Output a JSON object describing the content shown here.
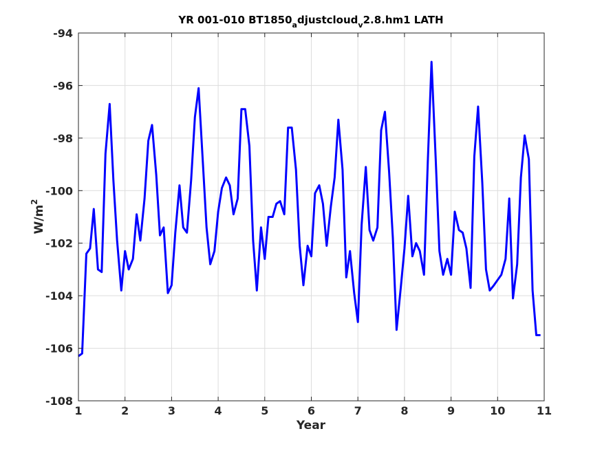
{
  "chart_data": {
    "type": "line",
    "title": {
      "base": "YR 001-010 BT1850",
      "sub1": "a",
      "mid": "djustcloud",
      "sub2": "v",
      "tail": "2.8.hm1 LATH"
    },
    "xlabel": "Year",
    "ylabel": {
      "base": "W/m",
      "sup": "2"
    },
    "xlim": [
      1,
      11
    ],
    "ylim": [
      -108,
      -94
    ],
    "xticks": [
      1,
      2,
      3,
      4,
      5,
      6,
      7,
      8,
      9,
      10,
      11
    ],
    "yticks": [
      -94,
      -96,
      -98,
      -100,
      -102,
      -104,
      -106,
      -108
    ],
    "grid": true,
    "series": [
      {
        "color": "#0000ff",
        "x": [
          1.0,
          1.08,
          1.17,
          1.25,
          1.33,
          1.42,
          1.5,
          1.58,
          1.67,
          1.75,
          1.83,
          1.92,
          2.0,
          2.08,
          2.17,
          2.25,
          2.33,
          2.42,
          2.5,
          2.58,
          2.67,
          2.75,
          2.83,
          2.92,
          3.0,
          3.08,
          3.17,
          3.25,
          3.33,
          3.42,
          3.5,
          3.58,
          3.67,
          3.75,
          3.83,
          3.92,
          4.0,
          4.08,
          4.17,
          4.25,
          4.33,
          4.42,
          4.5,
          4.58,
          4.67,
          4.75,
          4.83,
          4.92,
          5.0,
          5.08,
          5.17,
          5.25,
          5.33,
          5.42,
          5.5,
          5.58,
          5.67,
          5.75,
          5.83,
          5.92,
          6.0,
          6.08,
          6.17,
          6.25,
          6.33,
          6.42,
          6.5,
          6.58,
          6.67,
          6.75,
          6.83,
          6.92,
          7.0,
          7.08,
          7.17,
          7.25,
          7.33,
          7.42,
          7.5,
          7.58,
          7.67,
          7.75,
          7.83,
          7.92,
          8.0,
          8.08,
          8.17,
          8.25,
          8.33,
          8.42,
          8.5,
          8.58,
          8.67,
          8.75,
          8.83,
          8.92,
          9.0,
          9.08,
          9.17,
          9.25,
          9.33,
          9.42,
          9.5,
          9.58,
          9.67,
          9.75,
          9.83,
          9.92,
          10.0,
          10.08,
          10.17,
          10.25,
          10.33,
          10.42,
          10.5,
          10.58,
          10.67,
          10.75,
          10.83,
          10.92
        ],
        "y": [
          -106.3,
          -106.2,
          -102.4,
          -102.2,
          -100.7,
          -103.0,
          -103.1,
          -98.6,
          -96.7,
          -99.6,
          -101.9,
          -103.8,
          -102.3,
          -103.0,
          -102.6,
          -100.9,
          -101.9,
          -100.3,
          -98.1,
          -97.5,
          -99.4,
          -101.7,
          -101.4,
          -103.9,
          -103.6,
          -101.6,
          -99.8,
          -101.4,
          -101.6,
          -99.6,
          -97.2,
          -96.1,
          -98.9,
          -101.4,
          -102.8,
          -102.3,
          -100.8,
          -99.9,
          -99.5,
          -99.8,
          -100.9,
          -100.3,
          -96.9,
          -96.9,
          -98.3,
          -101.9,
          -103.8,
          -101.4,
          -102.6,
          -101.0,
          -101.0,
          -100.5,
          -100.4,
          -100.9,
          -97.6,
          -97.6,
          -99.2,
          -102.1,
          -103.6,
          -102.1,
          -102.5,
          -100.1,
          -99.8,
          -100.5,
          -102.1,
          -100.6,
          -99.5,
          -97.3,
          -99.2,
          -103.3,
          -102.3,
          -103.9,
          -105.0,
          -101.3,
          -99.1,
          -101.5,
          -101.9,
          -101.4,
          -97.7,
          -97.0,
          -99.3,
          -101.8,
          -105.3,
          -103.7,
          -102.2,
          -100.2,
          -102.5,
          -102.0,
          -102.3,
          -103.2,
          -98.9,
          -95.1,
          -98.8,
          -102.3,
          -103.2,
          -102.6,
          -103.2,
          -100.8,
          -101.5,
          -101.6,
          -102.2,
          -103.7,
          -98.7,
          -96.8,
          -99.7,
          -103.0,
          -103.8,
          -103.6,
          -103.4,
          -103.2,
          -102.6,
          -100.3,
          -104.1,
          -102.8,
          -99.5,
          -97.9,
          -98.8,
          -103.8,
          -105.5,
          -105.5
        ]
      }
    ]
  }
}
